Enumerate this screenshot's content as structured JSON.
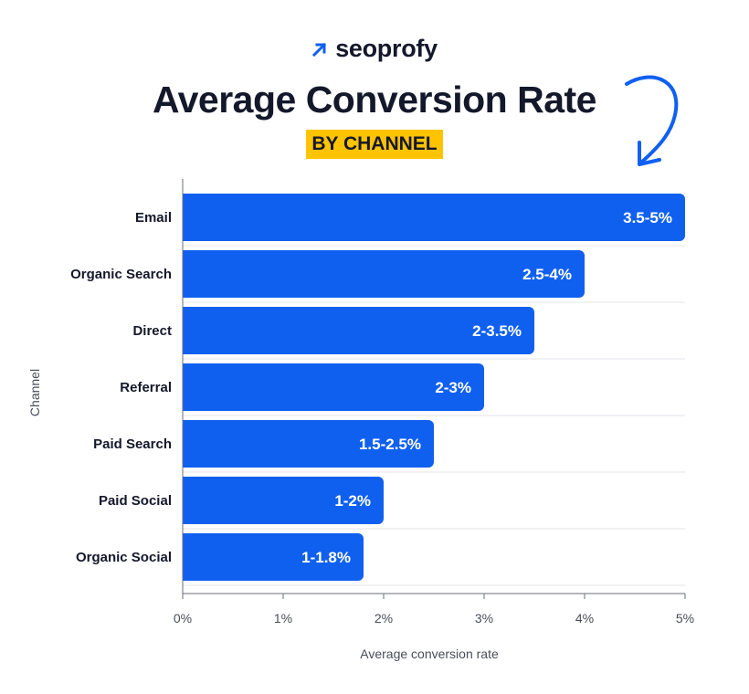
{
  "brand": {
    "logo_text": "seoprofy",
    "accent_color": "#1060f0",
    "highlight_color": "#ffc300"
  },
  "chart_data": {
    "type": "bar",
    "orientation": "horizontal",
    "title": "Average Conversion Rate",
    "subtitle": "BY CHANNEL",
    "xlabel": "Average conversion rate",
    "ylabel": "Channel",
    "xlim": [
      0,
      5
    ],
    "x_ticks": [
      "0%",
      "1%",
      "2%",
      "3%",
      "4%",
      "5%"
    ],
    "categories": [
      "Email",
      "Organic Search",
      "Direct",
      "Referral",
      "Paid Search",
      "Paid Social",
      "Organic Social"
    ],
    "values": [
      5,
      4,
      3.5,
      3,
      2.5,
      2,
      1.8
    ],
    "data_labels": [
      "3.5-5%",
      "2.5-4%",
      "2-3.5%",
      "2-3%",
      "1.5-2.5%",
      "1-2%",
      "1-1.8%"
    ],
    "grid": true,
    "bar_color": "#1060f0"
  }
}
